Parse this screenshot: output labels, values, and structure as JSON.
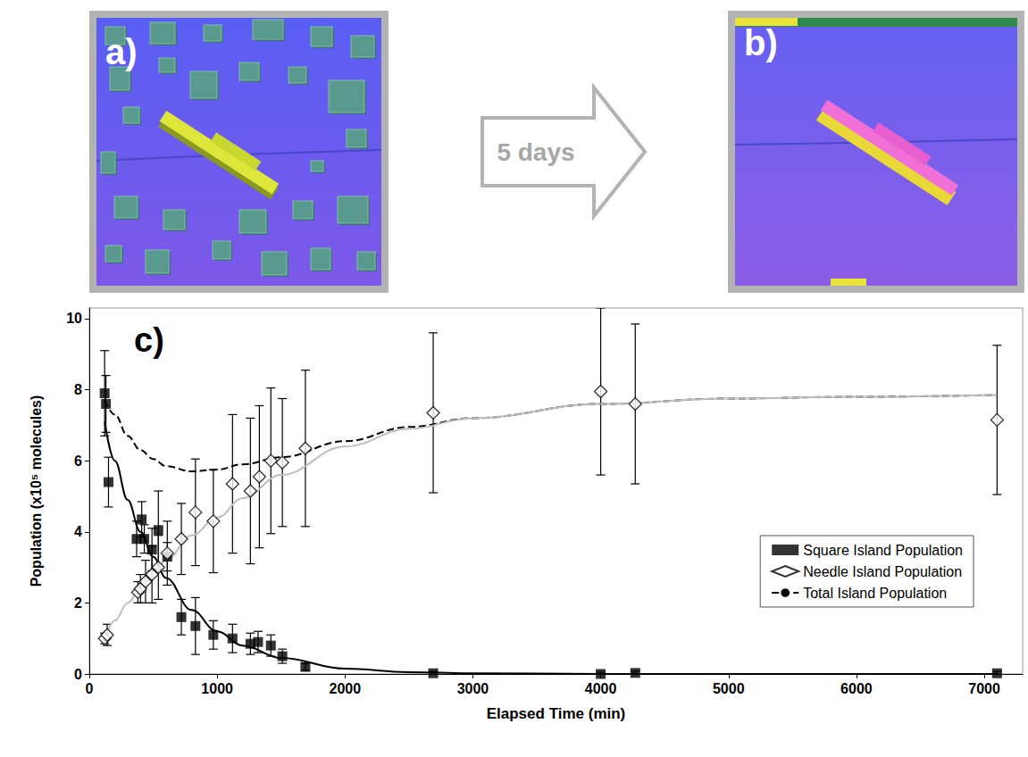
{
  "figure": {
    "panels": [
      {
        "label": "a)"
      },
      {
        "label": "b)"
      }
    ],
    "arrow": {
      "label": "5 days"
    }
  },
  "chart_data": {
    "type": "scatter",
    "annotations": [
      "c)"
    ],
    "x_label": "Elapsed Time (min)",
    "y_label": "Population (x10⁵ molecules)",
    "xlim": [
      0,
      7300
    ],
    "xticks": [
      0,
      1000,
      2000,
      3000,
      4000,
      5000,
      6000,
      7000
    ],
    "ylim": [
      0,
      10.3
    ],
    "yticks": [
      0,
      2,
      4,
      6,
      8,
      10
    ],
    "grid": false,
    "legend": "lower right",
    "series": [
      {
        "name": "Square Island Population",
        "type": "scatter",
        "marker": "square",
        "color": "#000000",
        "x": [
          120,
          130,
          150,
          370,
          410,
          430,
          490,
          540,
          610,
          720,
          830,
          970,
          1120,
          1260,
          1320,
          1420,
          1510,
          1690,
          2690,
          4000,
          4270,
          7100
        ],
        "values": [
          7.9,
          7.6,
          5.4,
          3.8,
          4.35,
          3.8,
          3.5,
          4.05,
          3.3,
          1.6,
          1.35,
          1.1,
          1.0,
          0.85,
          0.9,
          0.8,
          0.5,
          0.2,
          0.02,
          0.0,
          0.03,
          0.02
        ],
        "errors": [
          1.2,
          0.8,
          0.7,
          0.5,
          0.5,
          0.4,
          0.6,
          1.1,
          0.4,
          0.5,
          0.8,
          0.4,
          0.4,
          0.3,
          0.3,
          0.3,
          0.2,
          0.1,
          0.05,
          0.05,
          0.05,
          0.05
        ]
      },
      {
        "name": "Needle Island Population",
        "type": "scatter",
        "marker": "open-diamond",
        "color": "#000000",
        "x": [
          120,
          140,
          380,
          400,
          440,
          490,
          540,
          610,
          720,
          830,
          970,
          1120,
          1260,
          1330,
          1420,
          1510,
          1690,
          2690,
          4000,
          4270,
          7100
        ],
        "values": [
          1.0,
          1.1,
          2.3,
          2.4,
          2.6,
          2.8,
          3.0,
          3.4,
          3.8,
          4.55,
          4.3,
          5.35,
          5.15,
          5.55,
          6.0,
          5.95,
          6.35,
          7.35,
          7.95,
          7.6,
          7.15
        ],
        "errors": [
          0.15,
          0.3,
          0.3,
          0.4,
          0.6,
          0.8,
          0.9,
          0.9,
          1.0,
          1.5,
          1.45,
          1.95,
          2.05,
          2.0,
          2.05,
          1.8,
          2.2,
          2.25,
          2.35,
          2.25,
          2.1
        ]
      },
      {
        "name": "Total Island Population",
        "type": "line",
        "line_style": "dashed",
        "color": "#000000",
        "x": [
          120,
          200,
          300,
          400,
          500,
          600,
          800,
          1000,
          1200,
          1500,
          2000,
          2500,
          3000,
          4000,
          5000,
          6000,
          7100
        ],
        "values": [
          7.7,
          7.3,
          6.7,
          6.3,
          6.05,
          5.85,
          5.7,
          5.75,
          5.9,
          6.1,
          6.55,
          6.95,
          7.2,
          7.6,
          7.75,
          7.8,
          7.85
        ]
      },
      {
        "type": "line",
        "line_style": "solid",
        "color": "#000000",
        "x": [
          120,
          200,
          300,
          400,
          500,
          600,
          800,
          1000,
          1200,
          1500,
          2000,
          2500,
          3000,
          4000,
          5000,
          6000,
          7100
        ],
        "values": [
          7.1,
          6.0,
          4.9,
          4.0,
          3.3,
          2.7,
          1.8,
          1.2,
          0.8,
          0.45,
          0.15,
          0.05,
          0.02,
          0.0,
          0.0,
          0.0,
          0.0
        ]
      },
      {
        "type": "line",
        "line_style": "solid",
        "color": "#bdbdbd",
        "x": [
          120,
          200,
          300,
          400,
          500,
          600,
          800,
          1000,
          1200,
          1500,
          2000,
          2500,
          3000,
          4000,
          5000,
          6000,
          7100
        ],
        "values": [
          1.0,
          1.5,
          2.0,
          2.4,
          2.8,
          3.2,
          3.9,
          4.4,
          4.95,
          5.6,
          6.4,
          6.9,
          7.2,
          7.6,
          7.75,
          7.8,
          7.85
        ]
      }
    ]
  }
}
